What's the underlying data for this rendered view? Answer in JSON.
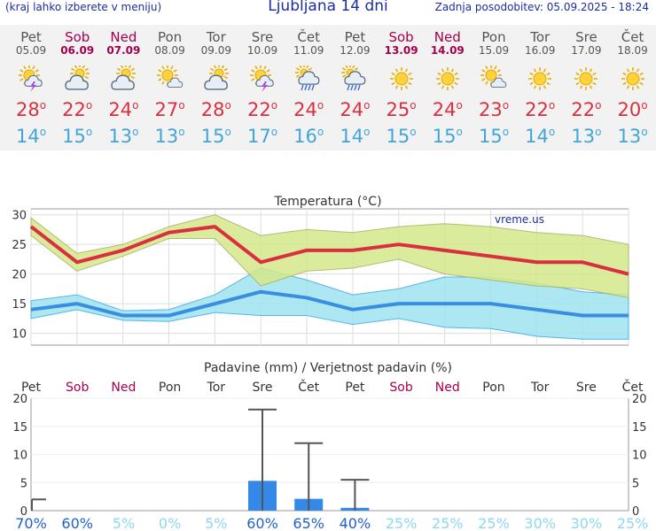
{
  "header": {
    "hint": "(kraj lahko izberete v meniju)",
    "title": "Ljubljana 14 dni",
    "updated": "Zadnja posodobitev: 05.09.2025 - 18:24"
  },
  "colors": {
    "weekday": "#555555",
    "weekend": "#a3004e",
    "high": "#d83040",
    "low": "#41a5dc",
    "high_band": "#d4e88a",
    "low_band": "#9fe3f0",
    "precip_bar": "#3388e8"
  },
  "days": [
    {
      "name": "Pet",
      "date": "05.09",
      "weekend": false,
      "icon": "thunder-partly-cloudy-icon",
      "hi": "28",
      "lo": "14"
    },
    {
      "name": "Sob",
      "date": "06.09",
      "weekend": true,
      "icon": "partly-cloudy-icon",
      "hi": "22",
      "lo": "15"
    },
    {
      "name": "Ned",
      "date": "07.09",
      "weekend": true,
      "icon": "partly-cloudy-icon",
      "hi": "24",
      "lo": "13"
    },
    {
      "name": "Pon",
      "date": "08.09",
      "weekend": false,
      "icon": "sun-cloud-icon",
      "hi": "27",
      "lo": "13"
    },
    {
      "name": "Tor",
      "date": "09.09",
      "weekend": false,
      "icon": "partly-cloudy-icon",
      "hi": "28",
      "lo": "15"
    },
    {
      "name": "Sre",
      "date": "10.09",
      "weekend": false,
      "icon": "thunder-sun-icon",
      "hi": "22",
      "lo": "17"
    },
    {
      "name": "Čet",
      "date": "11.09",
      "weekend": false,
      "icon": "rain-cloud-icon",
      "hi": "24",
      "lo": "16"
    },
    {
      "name": "Pet",
      "date": "12.09",
      "weekend": false,
      "icon": "rain-cloud-icon",
      "hi": "24",
      "lo": "14"
    },
    {
      "name": "Sob",
      "date": "13.09",
      "weekend": true,
      "icon": "sun-icon",
      "hi": "25",
      "lo": "15"
    },
    {
      "name": "Ned",
      "date": "14.09",
      "weekend": true,
      "icon": "sun-icon",
      "hi": "24",
      "lo": "15"
    },
    {
      "name": "Pon",
      "date": "15.09",
      "weekend": false,
      "icon": "sun-cloud-icon",
      "hi": "23",
      "lo": "15"
    },
    {
      "name": "Tor",
      "date": "16.09",
      "weekend": false,
      "icon": "sun-icon",
      "hi": "22",
      "lo": "14"
    },
    {
      "name": "Sre",
      "date": "17.09",
      "weekend": false,
      "icon": "sun-icon",
      "hi": "22",
      "lo": "13"
    },
    {
      "name": "Čet",
      "date": "18.09",
      "weekend": false,
      "icon": "sun-icon",
      "hi": "20",
      "lo": "13"
    }
  ],
  "degree_symbol": "o",
  "chart_data": [
    {
      "type": "line",
      "title": "Temperatura (°C)",
      "watermark": "vreme.us",
      "ylim": [
        8,
        31
      ],
      "yticks": [
        10,
        15,
        20,
        25,
        30
      ],
      "grid": true,
      "x": [
        "05.09",
        "06.09",
        "07.09",
        "08.09",
        "09.09",
        "10.09",
        "11.09",
        "12.09",
        "13.09",
        "14.09",
        "15.09",
        "16.09",
        "17.09",
        "18.09"
      ],
      "series": [
        {
          "role": "high",
          "values": [
            28,
            22,
            24,
            27,
            28,
            22,
            24,
            24,
            25,
            24,
            23,
            22,
            22,
            20
          ]
        },
        {
          "role": "high_upper",
          "values": [
            29.5,
            23.5,
            25,
            28,
            30,
            26.5,
            27.5,
            27,
            28,
            28.5,
            28,
            27,
            26.5,
            25
          ]
        },
        {
          "role": "high_lower",
          "values": [
            26.5,
            20.5,
            23,
            26,
            26,
            18,
            20.5,
            21,
            22.5,
            20,
            19,
            18,
            17.5,
            16
          ]
        },
        {
          "role": "low",
          "values": [
            14,
            15,
            13,
            13,
            15,
            17,
            16,
            14,
            15,
            15,
            15,
            14,
            13,
            13
          ]
        },
        {
          "role": "low_upper",
          "values": [
            15.5,
            16.5,
            13.8,
            14,
            16.5,
            21,
            19,
            16.5,
            17.5,
            19.5,
            19.5,
            18.5,
            17,
            16.5
          ]
        },
        {
          "role": "low_lower",
          "values": [
            12.5,
            14,
            12.2,
            12,
            13.5,
            13,
            13,
            11.5,
            12.5,
            11,
            10.8,
            9.5,
            9,
            9
          ]
        }
      ]
    },
    {
      "type": "bar",
      "title": "Padavine (mm) / Verjetnost padavin (%)",
      "ylim": [
        0,
        20
      ],
      "yticks": [
        0,
        5,
        10,
        15,
        20
      ],
      "categories": [
        "Pet",
        "Sob",
        "Ned",
        "Pon",
        "Tor",
        "Sre",
        "Čet",
        "Pet",
        "Sob",
        "Ned",
        "Pon",
        "Tor",
        "Sre",
        "Čet"
      ],
      "weekend": [
        false,
        true,
        true,
        false,
        false,
        false,
        false,
        false,
        true,
        true,
        false,
        false,
        false,
        false
      ],
      "values": [
        0,
        0,
        0,
        0,
        0,
        5.3,
        2.1,
        0.5,
        0,
        0,
        0,
        0,
        0,
        0
      ],
      "error_high": [
        2,
        0,
        0,
        0,
        0,
        18,
        12,
        5.5,
        0,
        0,
        0,
        0,
        0,
        0
      ],
      "probability": [
        "70%",
        "60%",
        "5%",
        "0%",
        "5%",
        "60%",
        "65%",
        "40%",
        "25%",
        "25%",
        "25%",
        "30%",
        "30%",
        "25%"
      ],
      "probability_level": [
        "high",
        "high",
        "low",
        "low",
        "low",
        "high",
        "high",
        "high",
        "low",
        "low",
        "low",
        "low",
        "low",
        "low"
      ]
    }
  ]
}
